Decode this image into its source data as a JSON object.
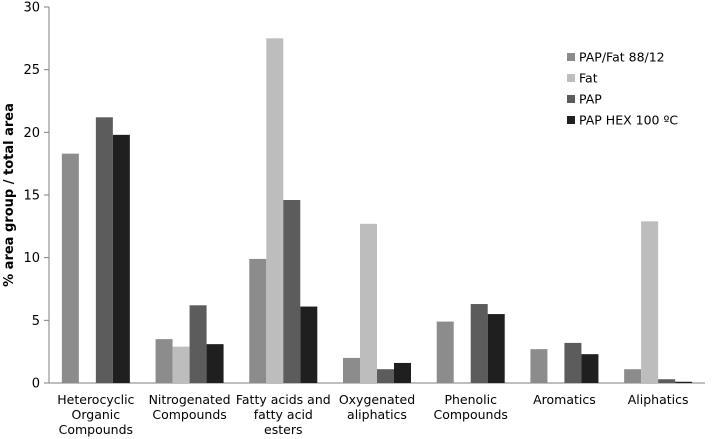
{
  "chart_data": {
    "type": "bar",
    "ylabel": "% area group / total area",
    "xlabel": "",
    "ylim": [
      0,
      30
    ],
    "yticks": [
      0,
      5,
      10,
      15,
      20,
      25,
      30
    ],
    "grid": false,
    "legend_position": "right",
    "categories": [
      [
        "Heterocyclic",
        "Organic",
        "Compounds"
      ],
      [
        "Nitrogenated",
        "Compounds"
      ],
      [
        "Fatty acids and",
        "fatty acid",
        "esters"
      ],
      [
        "Oxygenated",
        "aliphatics"
      ],
      [
        "Phenolic",
        "Compounds"
      ],
      [
        "Aromatics"
      ],
      [
        "Aliphatics"
      ]
    ],
    "series": [
      {
        "name": "PAP/Fat 88/12",
        "color": "#8c8c8c",
        "values": [
          18.3,
          3.5,
          9.9,
          2.0,
          4.9,
          2.7,
          1.1
        ]
      },
      {
        "name": "Fat",
        "color": "#bdbdbd",
        "values": [
          0,
          2.9,
          27.5,
          12.7,
          0,
          0,
          12.9
        ]
      },
      {
        "name": "PAP",
        "color": "#5c5c5c",
        "values": [
          21.2,
          6.2,
          14.6,
          1.1,
          6.3,
          3.2,
          0.3
        ]
      },
      {
        "name": "PAP HEX 100 ºC",
        "color": "#1f1f1f",
        "values": [
          19.8,
          3.1,
          6.1,
          1.6,
          5.5,
          2.3,
          0.1
        ]
      }
    ]
  }
}
